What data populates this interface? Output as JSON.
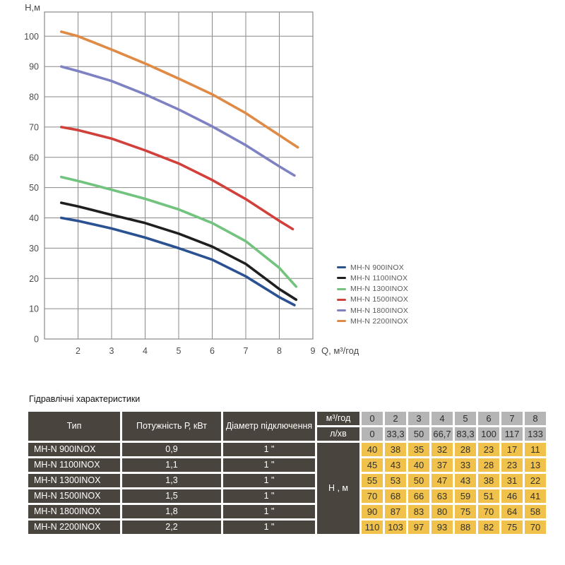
{
  "chart_data": {
    "type": "line",
    "title": "",
    "xlabel": "Q, м³/год",
    "ylabel": "Н,м",
    "xlim": [
      1,
      9
    ],
    "ylim": [
      0,
      108
    ],
    "x_ticks": [
      2,
      3,
      4,
      5,
      6,
      7,
      8,
      9
    ],
    "y_ticks": [
      0,
      10,
      20,
      30,
      40,
      50,
      60,
      70,
      80,
      90,
      100
    ],
    "grid": true,
    "grid_color": "#8a8a8a",
    "legend_position": "right-bottom",
    "series": [
      {
        "id": "mh-n-900inox",
        "name": "MH-N 900INOX",
        "color": "#2a5191",
        "points": [
          [
            1.5,
            40
          ],
          [
            2,
            39
          ],
          [
            3,
            36.5
          ],
          [
            4,
            33.5
          ],
          [
            5,
            30
          ],
          [
            6,
            26.2
          ],
          [
            7,
            20.7
          ],
          [
            8,
            13.8
          ],
          [
            8.45,
            11.2
          ]
        ]
      },
      {
        "id": "mh-n-1100inox",
        "name": "MH-N 1100INOX",
        "color": "#1f1f1f",
        "points": [
          [
            1.5,
            45
          ],
          [
            2,
            43.8
          ],
          [
            3,
            41
          ],
          [
            4,
            38.3
          ],
          [
            5,
            34.8
          ],
          [
            6,
            30.5
          ],
          [
            7,
            24.8
          ],
          [
            8,
            16.5
          ],
          [
            8.5,
            13
          ]
        ]
      },
      {
        "id": "mh-n-1300inox",
        "name": "MH-N 1300INOX",
        "color": "#72c37e",
        "points": [
          [
            1.5,
            53.5
          ],
          [
            2,
            52.2
          ],
          [
            3,
            49.3
          ],
          [
            4,
            46.3
          ],
          [
            5,
            42.8
          ],
          [
            6,
            38.3
          ],
          [
            7,
            32.3
          ],
          [
            8,
            23.5
          ],
          [
            8.5,
            17.3
          ]
        ]
      },
      {
        "id": "mh-n-1500inox",
        "name": "MH-N 1500INOX",
        "color": "#d2403c",
        "points": [
          [
            1.5,
            70
          ],
          [
            2,
            69
          ],
          [
            3,
            66.2
          ],
          [
            4,
            62.3
          ],
          [
            5,
            58
          ],
          [
            6,
            52.5
          ],
          [
            7,
            46.2
          ],
          [
            8,
            39
          ],
          [
            8.4,
            36.3
          ]
        ]
      },
      {
        "id": "mh-n-1800inox",
        "name": "MH-N 1800INOX",
        "color": "#7e82c3",
        "points": [
          [
            1.5,
            90
          ],
          [
            2,
            88.5
          ],
          [
            3,
            85.2
          ],
          [
            4,
            80.8
          ],
          [
            5,
            75.8
          ],
          [
            6,
            70.2
          ],
          [
            7,
            64
          ],
          [
            8,
            57
          ],
          [
            8.45,
            54
          ]
        ]
      },
      {
        "id": "mh-n-2200inox",
        "name": "MH-N 2200INOX",
        "color": "#df8a45",
        "points": [
          [
            1.5,
            101.5
          ],
          [
            2,
            100
          ],
          [
            3,
            95.6
          ],
          [
            4,
            91
          ],
          [
            5,
            86
          ],
          [
            6,
            80.8
          ],
          [
            7,
            74.6
          ],
          [
            8,
            67.3
          ],
          [
            8.55,
            63.3
          ]
        ]
      }
    ]
  },
  "table": {
    "title": "Гідравлічні характеристики",
    "col_headers": [
      "Тип",
      "Потужність  Р, кВт",
      "Діаметр підключення"
    ],
    "flow_unit_1": "м³/год",
    "flow_unit_2": "л/хв",
    "flow_row_1": [
      "0",
      "2",
      "3",
      "4",
      "5",
      "6",
      "7",
      "8"
    ],
    "flow_row_2": [
      "0",
      "33,3",
      "50",
      "66,7",
      "83,3",
      "100",
      "117",
      "133"
    ],
    "head_unit_label": "Н , м",
    "rows": [
      {
        "type": "MH-N 900INOX",
        "power": "0,9",
        "diameter": "1 \"",
        "values": [
          "40",
          "38",
          "35",
          "32",
          "28",
          "23",
          "17",
          "11"
        ]
      },
      {
        "type": "MH-N 1100INOX",
        "power": "1,1",
        "diameter": "1 \"",
        "values": [
          "45",
          "43",
          "40",
          "37",
          "33",
          "28",
          "23",
          "13"
        ]
      },
      {
        "type": "MH-N 1300INOX",
        "power": "1,3",
        "diameter": "1 \"",
        "values": [
          "55",
          "53",
          "50",
          "47",
          "43",
          "38",
          "31",
          "22"
        ]
      },
      {
        "type": "MH-N 1500INOX",
        "power": "1,5",
        "diameter": "1 \"",
        "values": [
          "70",
          "68",
          "66",
          "63",
          "59",
          "51",
          "46",
          "41"
        ]
      },
      {
        "type": "MH-N 1800INOX",
        "power": "1,8",
        "diameter": "1 \"",
        "values": [
          "90",
          "87",
          "83",
          "80",
          "75",
          "70",
          "64",
          "58"
        ]
      },
      {
        "type": "MH-N 2200INOX",
        "power": "2,2",
        "diameter": "1 \"",
        "values": [
          "110",
          "103",
          "97",
          "93",
          "88",
          "82",
          "75",
          "70"
        ]
      }
    ],
    "colors": {
      "dark_cell": "#4a443e",
      "gray_cell": "#b5b5b5",
      "yellow_cell": "#f1c24b"
    }
  }
}
